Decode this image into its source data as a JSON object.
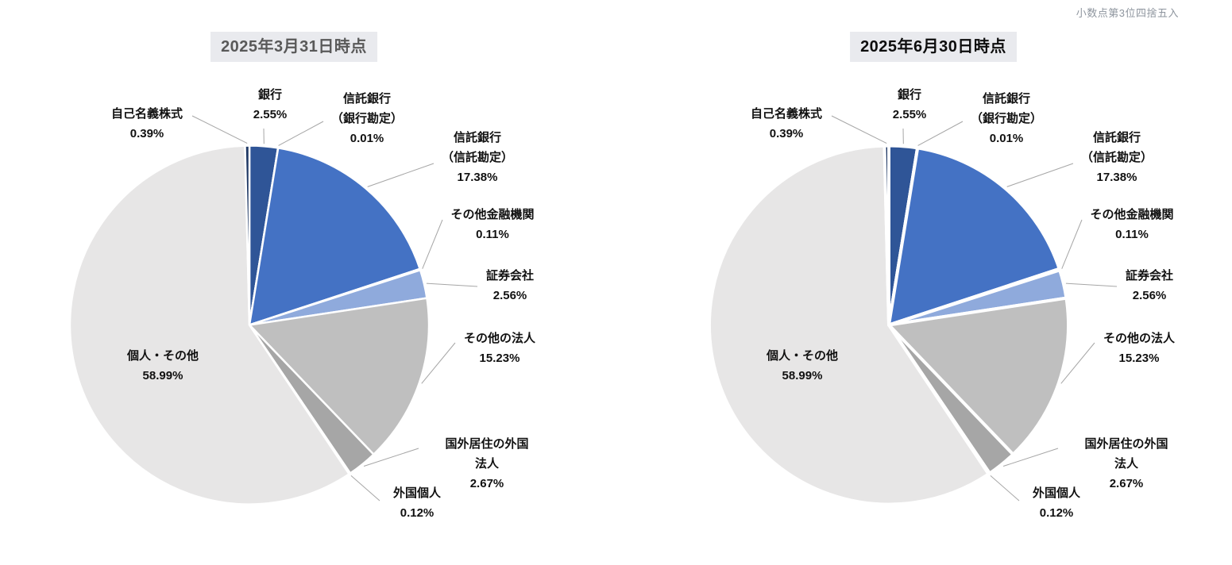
{
  "note": "小数点第3位四捨五入",
  "chart_data": [
    {
      "type": "pie",
      "title": "2025年3月31日時点",
      "title_color": "#595959",
      "title_bg": "#E9EAEE",
      "unit": "%",
      "rotation": "clockwise-from-top",
      "labels": [
        "銀行",
        "信託銀行\n（銀行勘定）",
        "信託銀行\n（信託勘定）",
        "その他金融機関",
        "証券会社",
        "その他の法人",
        "国外居住の外国法人",
        "外国個人",
        "個人・その他",
        "自己名義株式"
      ],
      "values": [
        2.55,
        0.01,
        17.38,
        0.11,
        2.56,
        15.23,
        2.67,
        0.12,
        58.99,
        0.39
      ],
      "value_labels": [
        "2.55%",
        "0.01%",
        "17.38%",
        "0.11%",
        "2.56%",
        "15.23%",
        "2.67%",
        "0.12%",
        "58.99%",
        "0.39%"
      ],
      "colors": [
        "#2F5597",
        "#3B6AB5",
        "#4472C4",
        "#5E8AD4",
        "#8FAADC",
        "#BFBFBF",
        "#A6A6A6",
        "#7F7F7F",
        "#E7E6E6",
        "#1F3864"
      ],
      "leader_color": "#A6A6A6",
      "label_color": "#111111"
    },
    {
      "type": "pie",
      "title": "2025年6月30日時点",
      "title_color": "#0D0D0D",
      "title_bg": "#E9EAEE",
      "unit": "%",
      "rotation": "clockwise-from-top",
      "labels": [
        "銀行",
        "信託銀行\n（銀行勘定）",
        "信託銀行\n（信託勘定）",
        "その他金融機関",
        "証券会社",
        "その他の法人",
        "国外居住の外国法人",
        "外国個人",
        "個人・その他",
        "自己名義株式"
      ],
      "values": [
        2.55,
        0.01,
        17.38,
        0.11,
        2.56,
        15.23,
        2.67,
        0.12,
        58.99,
        0.39
      ],
      "value_labels": [
        "2.55%",
        "0.01%",
        "17.38%",
        "0.11%",
        "2.56%",
        "15.23%",
        "2.67%",
        "0.12%",
        "58.99%",
        "0.39%"
      ],
      "colors": [
        "#2F5597",
        "#3B6AB5",
        "#4472C4",
        "#5E8AD4",
        "#8FAADC",
        "#BFBFBF",
        "#A6A6A6",
        "#7F7F7F",
        "#E7E6E6",
        "#1F3864"
      ],
      "leader_color": "#A6A6A6",
      "label_color": "#111111"
    }
  ]
}
